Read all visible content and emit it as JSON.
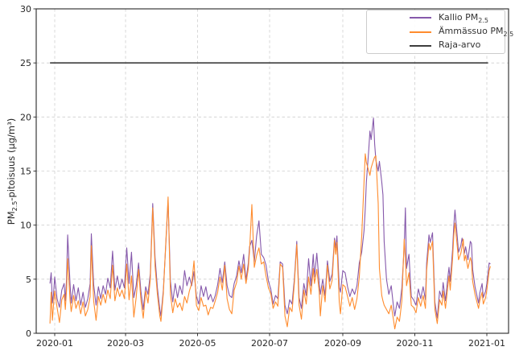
{
  "chart_data": {
    "type": "line",
    "title": "",
    "xlabel": "",
    "ylabel": "PM2.5-pitoisuus (µg/m³)",
    "ylim": [
      0,
      30
    ],
    "yticks": [
      0,
      5,
      10,
      15,
      20,
      25,
      30
    ],
    "xticks": [
      {
        "day": 0,
        "label": "2020-01"
      },
      {
        "day": 60,
        "label": "2020-03"
      },
      {
        "day": 121,
        "label": "2020-05"
      },
      {
        "day": 182,
        "label": "2020-07"
      },
      {
        "day": 244,
        "label": "2020-09"
      },
      {
        "day": 305,
        "label": "2020-11"
      },
      {
        "day": 366,
        "label": "2021-01"
      }
    ],
    "grid": "dashed-both-axes",
    "legend_position": "upper right",
    "x_unit": "daily dates 2020-01 .. 2021-01 (day index from 2020-01-01)",
    "limit_line": {
      "name": "Raja-arvo",
      "value": 25,
      "color": "#2f2f2f",
      "day_start": -4,
      "day_end": 367
    },
    "series": [
      {
        "name": "Kallio PM2.5",
        "color": "#8659ab"
      },
      {
        "name": "Ämmässuo PM2.5",
        "color": "#ff8c2e"
      }
    ],
    "points_format": [
      "day",
      "kallio_pm25",
      "ammassuo_pm25"
    ],
    "points": [
      [
        -4,
        4.6,
        0.9
      ],
      [
        -3,
        5.6,
        3.8
      ],
      [
        -2,
        2.8,
        1.2
      ],
      [
        -1,
        3.6,
        2.6
      ],
      [
        0,
        5.2,
        3.9
      ],
      [
        2,
        3.2,
        2.4
      ],
      [
        4,
        2.4,
        1.0
      ],
      [
        6,
        4.0,
        3.1
      ],
      [
        8,
        4.6,
        3.6
      ],
      [
        9,
        3.0,
        2.2
      ],
      [
        10,
        5.0,
        4.0
      ],
      [
        11,
        9.1,
        6.9
      ],
      [
        13,
        4.5,
        3.0
      ],
      [
        14,
        2.8,
        2.0
      ],
      [
        16,
        4.5,
        3.5
      ],
      [
        18,
        3.0,
        2.3
      ],
      [
        20,
        4.2,
        3.0
      ],
      [
        22,
        2.6,
        1.8
      ],
      [
        24,
        3.8,
        2.9
      ],
      [
        26,
        2.4,
        1.6
      ],
      [
        28,
        3.2,
        2.2
      ],
      [
        30,
        4.6,
        3.4
      ],
      [
        31,
        9.2,
        8.1
      ],
      [
        33,
        4.5,
        3.0
      ],
      [
        35,
        2.6,
        1.2
      ],
      [
        37,
        4.3,
        3.4
      ],
      [
        39,
        3.2,
        2.6
      ],
      [
        41,
        4.4,
        3.6
      ],
      [
        43,
        3.6,
        2.8
      ],
      [
        45,
        5.1,
        4.0
      ],
      [
        47,
        4.2,
        3.2
      ],
      [
        49,
        7.6,
        6.3
      ],
      [
        51,
        4.0,
        3.0
      ],
      [
        53,
        5.3,
        4.2
      ],
      [
        55,
        4.1,
        3.4
      ],
      [
        57,
        5.0,
        4.0
      ],
      [
        59,
        4.2,
        3.2
      ],
      [
        61,
        7.9,
        6.4
      ],
      [
        63,
        4.6,
        3.1
      ],
      [
        65,
        7.5,
        5.3
      ],
      [
        67,
        3.3,
        1.5
      ],
      [
        69,
        4.4,
        3.3
      ],
      [
        71,
        6.5,
        5.9
      ],
      [
        73,
        3.9,
        3.1
      ],
      [
        75,
        2.2,
        1.4
      ],
      [
        77,
        4.3,
        3.9
      ],
      [
        79,
        3.6,
        2.8
      ],
      [
        81,
        5.5,
        5.0
      ],
      [
        83,
        12.0,
        11.6
      ],
      [
        85,
        7.0,
        6.2
      ],
      [
        87,
        4.2,
        3.6
      ],
      [
        89,
        2.2,
        1.6
      ],
      [
        90,
        1.6,
        1.1
      ],
      [
        92,
        4.0,
        3.7
      ],
      [
        94,
        8.0,
        8.2
      ],
      [
        96,
        12.3,
        12.6
      ],
      [
        98,
        4.8,
        3.6
      ],
      [
        100,
        2.9,
        1.9
      ],
      [
        102,
        4.6,
        3.2
      ],
      [
        104,
        3.3,
        2.4
      ],
      [
        106,
        4.4,
        2.8
      ],
      [
        108,
        3.6,
        2.1
      ],
      [
        110,
        5.8,
        3.4
      ],
      [
        112,
        4.4,
        2.8
      ],
      [
        114,
        5.2,
        3.9
      ],
      [
        116,
        4.4,
        4.6
      ],
      [
        118,
        5.7,
        6.7
      ],
      [
        120,
        3.4,
        2.6
      ],
      [
        122,
        2.7,
        2.1
      ],
      [
        124,
        4.4,
        3.3
      ],
      [
        126,
        3.4,
        2.5
      ],
      [
        128,
        4.3,
        2.6
      ],
      [
        130,
        3.1,
        1.7
      ],
      [
        132,
        3.6,
        2.4
      ],
      [
        134,
        2.9,
        2.3
      ],
      [
        136,
        3.5,
        3.0
      ],
      [
        138,
        4.5,
        3.8
      ],
      [
        140,
        6.0,
        5.2
      ],
      [
        142,
        4.7,
        4.0
      ],
      [
        144,
        6.6,
        6.3
      ],
      [
        146,
        4.4,
        3.2
      ],
      [
        148,
        3.5,
        2.2
      ],
      [
        150,
        3.3,
        1.8
      ],
      [
        152,
        4.6,
        4.0
      ],
      [
        154,
        5.3,
        4.7
      ],
      [
        156,
        6.7,
        6.2
      ],
      [
        158,
        5.6,
        5.0
      ],
      [
        160,
        7.3,
        6.4
      ],
      [
        162,
        4.9,
        4.6
      ],
      [
        164,
        6.5,
        6.0
      ],
      [
        165,
        8.0,
        7.6
      ],
      [
        167,
        8.6,
        11.9
      ],
      [
        169,
        6.6,
        6.1
      ],
      [
        171,
        9.0,
        7.2
      ],
      [
        173,
        10.4,
        7.9
      ],
      [
        175,
        7.3,
        6.4
      ],
      [
        177,
        7.0,
        6.6
      ],
      [
        179,
        6.3,
        5.3
      ],
      [
        181,
        4.8,
        4.2
      ],
      [
        183,
        4.1,
        3.7
      ],
      [
        185,
        2.7,
        2.3
      ],
      [
        187,
        3.5,
        2.9
      ],
      [
        189,
        3.2,
        2.5
      ],
      [
        191,
        6.6,
        6.4
      ],
      [
        193,
        6.4,
        6.1
      ],
      [
        195,
        2.6,
        1.6
      ],
      [
        197,
        1.8,
        0.6
      ],
      [
        199,
        3.1,
        2.4
      ],
      [
        201,
        2.7,
        2.0
      ],
      [
        203,
        5.0,
        4.6
      ],
      [
        205,
        8.5,
        8.2
      ],
      [
        207,
        3.3,
        2.6
      ],
      [
        209,
        2.3,
        1.3
      ],
      [
        211,
        4.6,
        4.0
      ],
      [
        213,
        3.5,
        2.7
      ],
      [
        215,
        6.9,
        5.2
      ],
      [
        217,
        4.4,
        3.6
      ],
      [
        219,
        7.3,
        6.0
      ],
      [
        220,
        5.2,
        4.6
      ],
      [
        222,
        7.4,
        5.9
      ],
      [
        224,
        4.6,
        3.8
      ],
      [
        225,
        3.6,
        1.6
      ],
      [
        227,
        5.0,
        4.4
      ],
      [
        229,
        3.5,
        2.9
      ],
      [
        231,
        6.7,
        6.3
      ],
      [
        233,
        4.8,
        4.1
      ],
      [
        235,
        5.5,
        4.9
      ],
      [
        237,
        8.8,
        8.6
      ],
      [
        238,
        7.9,
        7.3
      ],
      [
        239,
        9.0,
        8.4
      ],
      [
        241,
        4.3,
        2.9
      ],
      [
        242,
        3.8,
        1.8
      ],
      [
        244,
        5.8,
        4.5
      ],
      [
        246,
        5.6,
        4.3
      ],
      [
        248,
        4.3,
        3.4
      ],
      [
        250,
        3.4,
        2.5
      ],
      [
        252,
        4.1,
        3.3
      ],
      [
        254,
        3.6,
        2.2
      ],
      [
        256,
        4.4,
        3.2
      ],
      [
        258,
        6.5,
        5.2
      ],
      [
        260,
        7.5,
        9.0
      ],
      [
        262,
        9.5,
        14.0
      ],
      [
        263,
        11.5,
        16.6
      ],
      [
        264,
        14.0,
        15.8
      ],
      [
        266,
        17.0,
        15.0
      ],
      [
        267,
        18.7,
        14.6
      ],
      [
        268,
        17.9,
        15.3
      ],
      [
        270,
        19.9,
        16.0
      ],
      [
        271,
        17.5,
        16.3
      ],
      [
        272,
        16.0,
        16.4
      ],
      [
        274,
        15.0,
        12.0
      ],
      [
        275,
        15.9,
        6.0
      ],
      [
        277,
        14.0,
        3.5
      ],
      [
        278,
        12.8,
        3.0
      ],
      [
        279,
        8.5,
        2.6
      ],
      [
        281,
        5.0,
        2.2
      ],
      [
        283,
        3.6,
        1.8
      ],
      [
        285,
        4.4,
        2.6
      ],
      [
        287,
        2.4,
        1.2
      ],
      [
        288,
        1.6,
        0.4
      ],
      [
        290,
        2.9,
        1.5
      ],
      [
        292,
        2.3,
        1.1
      ],
      [
        294,
        4.2,
        3.0
      ],
      [
        296,
        8.0,
        8.7
      ],
      [
        297,
        11.6,
        7.0
      ],
      [
        298,
        6.0,
        4.4
      ],
      [
        300,
        7.3,
        5.6
      ],
      [
        302,
        3.4,
        2.6
      ],
      [
        304,
        3.1,
        2.4
      ],
      [
        306,
        2.6,
        1.9
      ],
      [
        308,
        4.1,
        3.3
      ],
      [
        310,
        3.2,
        2.5
      ],
      [
        312,
        4.3,
        3.5
      ],
      [
        314,
        3.1,
        2.3
      ],
      [
        315,
        6.5,
        5.8
      ],
      [
        317,
        9.1,
        8.3
      ],
      [
        318,
        8.4,
        7.7
      ],
      [
        320,
        9.3,
        8.5
      ],
      [
        321,
        6.0,
        5.2
      ],
      [
        322,
        2.9,
        2.2
      ],
      [
        324,
        1.4,
        0.9
      ],
      [
        326,
        3.9,
        3.1
      ],
      [
        328,
        3.3,
        2.6
      ],
      [
        329,
        4.7,
        3.9
      ],
      [
        331,
        3.0,
        2.3
      ],
      [
        333,
        5.2,
        4.4
      ],
      [
        334,
        6.1,
        5.3
      ],
      [
        335,
        4.8,
        4.0
      ],
      [
        337,
        7.8,
        7.0
      ],
      [
        338,
        9.9,
        9.0
      ],
      [
        339,
        11.4,
        10.2
      ],
      [
        341,
        8.9,
        8.0
      ],
      [
        342,
        7.5,
        6.8
      ],
      [
        344,
        8.1,
        7.4
      ],
      [
        345,
        8.8,
        8.0
      ],
      [
        346,
        8.2,
        8.7
      ],
      [
        347,
        7.4,
        6.7
      ],
      [
        348,
        8.0,
        7.2
      ],
      [
        350,
        6.8,
        6.0
      ],
      [
        352,
        8.5,
        7.0
      ],
      [
        353,
        8.3,
        6.6
      ],
      [
        354,
        5.9,
        4.8
      ],
      [
        356,
        4.3,
        3.6
      ],
      [
        359,
        2.8,
        2.3
      ],
      [
        360,
        3.7,
        3.0
      ],
      [
        362,
        4.6,
        3.8
      ],
      [
        363,
        3.3,
        2.7
      ],
      [
        365,
        3.9,
        3.3
      ],
      [
        366,
        4.6,
        4.0
      ],
      [
        368,
        6.5,
        5.8
      ],
      [
        369,
        6.4,
        6.2
      ]
    ]
  },
  "axis": {
    "ylabel_p1": "PM",
    "ylabel_sub": "2.5",
    "ylabel_p2": "-pitoisuus (µg/m³)"
  },
  "legend": {
    "items": [
      {
        "text": "Kallio PM",
        "sub": "2.5",
        "color": "#8659ab",
        "thickness": 2
      },
      {
        "text": "Ämmässuo PM",
        "sub": "2.5",
        "color": "#ff8c2e",
        "thickness": 2
      },
      {
        "text": "Raja-arvo",
        "sub": "",
        "color": "#3d3d3d",
        "thickness": 2
      }
    ]
  },
  "style": {
    "grid_color": "#cfcfcf",
    "spine_color": "#262626",
    "tick_label_color": "#262626",
    "background": "#ffffff"
  }
}
